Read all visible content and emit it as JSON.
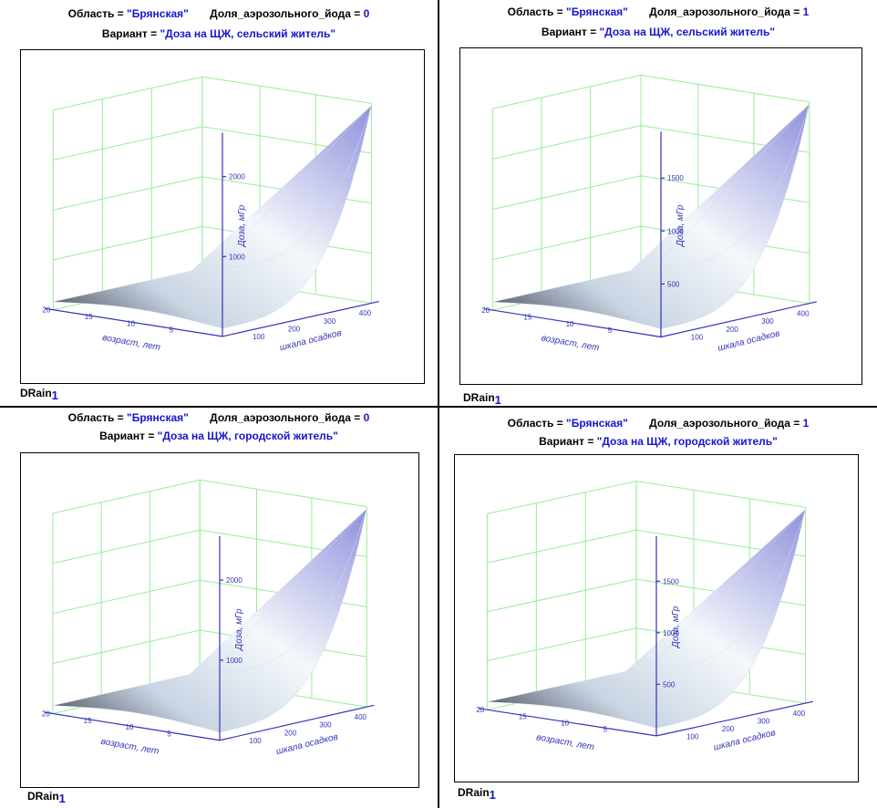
{
  "chart_data": [
    {
      "type": "surface3d",
      "region_label": "Область",
      "region": "\"Брянская\"",
      "iodine_label": "Доля_аэрозольного_йода",
      "iodine": "0",
      "variant_label": "Вариант",
      "variant": "\"Доза на ЩЖ, сельский житель\"",
      "variable": "DRain",
      "variable_index": "1",
      "zlabel": "Доза, мГр",
      "xlabel": "возраст, лет",
      "ylabel": "шкала осадков",
      "z_ticks": [
        "2000",
        "1000"
      ],
      "x_ticks": [
        "20",
        "15",
        "10",
        "5"
      ],
      "y_ticks": [
        "100",
        "200",
        "300",
        "400"
      ],
      "zlim": [
        0,
        2500
      ],
      "shaded_underside": true
    },
    {
      "type": "surface3d",
      "region_label": "Область",
      "region": "\"Брянская\"",
      "iodine_label": "Доля_аэрозольного_йода",
      "iodine": "1",
      "variant_label": "Вариант",
      "variant": "\"Доза на ЩЖ, сельский житель\"",
      "variable": "DRain",
      "variable_index": "1",
      "zlabel": "Доза, мГр",
      "xlabel": "возраст, лет",
      "ylabel": "шкала осадков",
      "z_ticks": [
        "1500",
        "1000",
        "500"
      ],
      "x_ticks": [
        "20",
        "15",
        "10",
        "5"
      ],
      "y_ticks": [
        "100",
        "200",
        "300",
        "400"
      ],
      "zlim": [
        0,
        1900
      ],
      "shaded_underside": false
    },
    {
      "type": "surface3d",
      "region_label": "Область",
      "region": "\"Брянская\"",
      "iodine_label": "Доля_аэрозольного_йода",
      "iodine": "0",
      "variant_label": "Вариант",
      "variant": "\"Доза на ЩЖ, городской житель\"",
      "variable": "DRain",
      "variable_index": "1",
      "zlabel": "Доза, мГр",
      "xlabel": "возраст, лет",
      "ylabel": "шкала осадков",
      "z_ticks": [
        "2000",
        "1000"
      ],
      "x_ticks": [
        "20",
        "15",
        "10",
        "5"
      ],
      "y_ticks": [
        "100",
        "200",
        "300",
        "400"
      ],
      "zlim": [
        0,
        2500
      ],
      "shaded_underside": true
    },
    {
      "type": "surface3d",
      "region_label": "Область",
      "region": "\"Брянская\"",
      "iodine_label": "Доля_аэрозольного_йода",
      "iodine": "1",
      "variant_label": "Вариант",
      "variant": "\"Доза на ЩЖ, городской житель\"",
      "variable": "DRain",
      "variable_index": "1",
      "zlabel": "Доза, мГр",
      "xlabel": "возраст, лет",
      "ylabel": "шкала осадков",
      "z_ticks": [
        "1500",
        "1000",
        "500"
      ],
      "x_ticks": [
        "20",
        "15",
        "10",
        "5"
      ],
      "y_ticks": [
        "100",
        "200",
        "300",
        "400"
      ],
      "zlim": [
        0,
        1900
      ],
      "shaded_underside": false
    }
  ],
  "colors": {
    "grid": "#98ec98",
    "axis": "#3434b8",
    "value_text": "#1515d0",
    "surface_light": "#f4f8fb",
    "surface_mid": "#c9d4e3",
    "surface_dark": "#3e4350",
    "surface_lavender": "#8f8fdc",
    "underside": "#8c4a47"
  }
}
